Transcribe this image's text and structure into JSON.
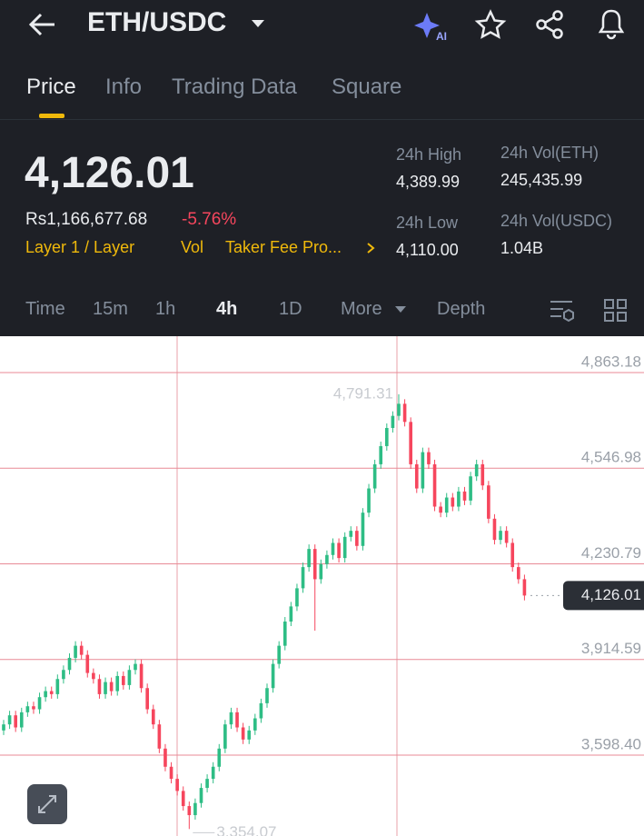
{
  "header": {
    "pair": "ETH/USDC"
  },
  "tabs": [
    "Price",
    "Info",
    "Trading Data",
    "Square"
  ],
  "ticker": {
    "price": "4,126.01",
    "fiat": "Rs1,166,677.68",
    "change": "-5.76%",
    "tags": [
      "Layer 1 / Layer",
      "Vol",
      "Taker Fee Pro..."
    ],
    "stats": [
      {
        "label": "24h High",
        "value": "4,389.99"
      },
      {
        "label": "24h Vol(ETH)",
        "value": "245,435.99"
      },
      {
        "label": "24h Low",
        "value": "4,110.00"
      },
      {
        "label": "24h Vol(USDC)",
        "value": "1.04B"
      }
    ]
  },
  "intervals": [
    "Time",
    "15m",
    "1h",
    "4h",
    "1D",
    "More",
    "Depth"
  ],
  "chart_data": {
    "type": "candlestick",
    "up_color": "#2ebd85",
    "down_color": "#f6465d",
    "grid": true,
    "ylim": [
      3331.03,
      4983.35
    ],
    "yticks": [
      {
        "value": 4863.18,
        "label": "4,863.18"
      },
      {
        "value": 4546.98,
        "label": "4,546.98"
      },
      {
        "value": 4230.79,
        "label": "4,230.79"
      },
      {
        "value": 3914.59,
        "label": "3,914.59"
      },
      {
        "value": 3598.4,
        "label": "3,598.40"
      }
    ],
    "high_label": {
      "value": 4791.31,
      "label": "4,791.31"
    },
    "low_label": {
      "value": 3354.07,
      "label": "3,354.07"
    },
    "last_price": {
      "value": 4126.01,
      "label": "4,126.01"
    },
    "candles": [
      [
        3680,
        3715,
        3665,
        3700
      ],
      [
        3700,
        3745,
        3685,
        3730
      ],
      [
        3730,
        3745,
        3675,
        3690
      ],
      [
        3690,
        3755,
        3675,
        3740
      ],
      [
        3740,
        3775,
        3725,
        3760
      ],
      [
        3760,
        3775,
        3735,
        3750
      ],
      [
        3750,
        3805,
        3735,
        3790
      ],
      [
        3790,
        3825,
        3775,
        3810
      ],
      [
        3810,
        3825,
        3785,
        3800
      ],
      [
        3800,
        3865,
        3785,
        3850
      ],
      [
        3850,
        3895,
        3835,
        3880
      ],
      [
        3880,
        3935,
        3865,
        3920
      ],
      [
        3920,
        3975,
        3905,
        3960
      ],
      [
        3960,
        3975,
        3915,
        3930
      ],
      [
        3930,
        3945,
        3855,
        3870
      ],
      [
        3870,
        3885,
        3835,
        3850
      ],
      [
        3850,
        3865,
        3785,
        3800
      ],
      [
        3800,
        3855,
        3785,
        3840
      ],
      [
        3840,
        3855,
        3795,
        3810
      ],
      [
        3810,
        3875,
        3795,
        3860
      ],
      [
        3860,
        3875,
        3815,
        3830
      ],
      [
        3830,
        3895,
        3815,
        3880
      ],
      [
        3880,
        3915,
        3865,
        3900
      ],
      [
        3900,
        3915,
        3805,
        3820
      ],
      [
        3820,
        3835,
        3735,
        3750
      ],
      [
        3750,
        3765,
        3685,
        3700
      ],
      [
        3700,
        3715,
        3605,
        3620
      ],
      [
        3620,
        3635,
        3545,
        3560
      ],
      [
        3560,
        3575,
        3505,
        3520
      ],
      [
        3520,
        3535,
        3465,
        3480
      ],
      [
        3480,
        3495,
        3415,
        3430
      ],
      [
        3430,
        3445,
        3354.07,
        3400
      ],
      [
        3400,
        3455,
        3385,
        3440
      ],
      [
        3440,
        3505,
        3425,
        3490
      ],
      [
        3490,
        3535,
        3475,
        3520
      ],
      [
        3520,
        3575,
        3505,
        3560
      ],
      [
        3560,
        3635,
        3545,
        3620
      ],
      [
        3620,
        3715,
        3605,
        3700
      ],
      [
        3700,
        3755,
        3685,
        3740
      ],
      [
        3740,
        3755,
        3675,
        3690
      ],
      [
        3690,
        3705,
        3635,
        3650
      ],
      [
        3650,
        3695,
        3635,
        3680
      ],
      [
        3680,
        3735,
        3665,
        3720
      ],
      [
        3720,
        3785,
        3705,
        3770
      ],
      [
        3770,
        3835,
        3755,
        3820
      ],
      [
        3820,
        3915,
        3805,
        3900
      ],
      [
        3900,
        3975,
        3885,
        3960
      ],
      [
        3960,
        4055,
        3945,
        4040
      ],
      [
        4040,
        4105,
        4025,
        4090
      ],
      [
        4090,
        4165,
        4075,
        4150
      ],
      [
        4150,
        4235,
        4135,
        4220
      ],
      [
        4220,
        4295,
        4205,
        4280
      ],
      [
        4280,
        4295,
        4010,
        4180
      ],
      [
        4180,
        4245,
        4165,
        4230
      ],
      [
        4230,
        4275,
        4215,
        4260
      ],
      [
        4260,
        4315,
        4245,
        4300
      ],
      [
        4300,
        4315,
        4235,
        4250
      ],
      [
        4250,
        4335,
        4235,
        4320
      ],
      [
        4320,
        4355,
        4305,
        4340
      ],
      [
        4340,
        4355,
        4275,
        4290
      ],
      [
        4290,
        4415,
        4275,
        4400
      ],
      [
        4400,
        4495,
        4385,
        4480
      ],
      [
        4480,
        4575,
        4465,
        4560
      ],
      [
        4560,
        4635,
        4545,
        4620
      ],
      [
        4620,
        4695,
        4605,
        4680
      ],
      [
        4680,
        4735,
        4665,
        4720
      ],
      [
        4720,
        4791.31,
        4705,
        4760
      ],
      [
        4760,
        4775,
        4685,
        4700
      ],
      [
        4700,
        4715,
        4545,
        4560
      ],
      [
        4560,
        4575,
        4465,
        4480
      ],
      [
        4480,
        4615,
        4465,
        4600
      ],
      [
        4600,
        4615,
        4545,
        4560
      ],
      [
        4560,
        4575,
        4405,
        4420
      ],
      [
        4420,
        4435,
        4385,
        4400
      ],
      [
        4400,
        4465,
        4385,
        4450
      ],
      [
        4450,
        4465,
        4405,
        4420
      ],
      [
        4420,
        4485,
        4405,
        4470
      ],
      [
        4470,
        4485,
        4425,
        4440
      ],
      [
        4440,
        4535,
        4425,
        4520
      ],
      [
        4520,
        4575,
        4505,
        4560
      ],
      [
        4560,
        4575,
        4475,
        4490
      ],
      [
        4490,
        4505,
        4365,
        4380
      ],
      [
        4380,
        4395,
        4295,
        4310
      ],
      [
        4310,
        4355,
        4295,
        4340
      ],
      [
        4340,
        4355,
        4285,
        4300
      ],
      [
        4300,
        4315,
        4205,
        4220
      ],
      [
        4220,
        4235,
        4165,
        4180
      ],
      [
        4180,
        4195,
        4110,
        4126.01
      ]
    ]
  }
}
